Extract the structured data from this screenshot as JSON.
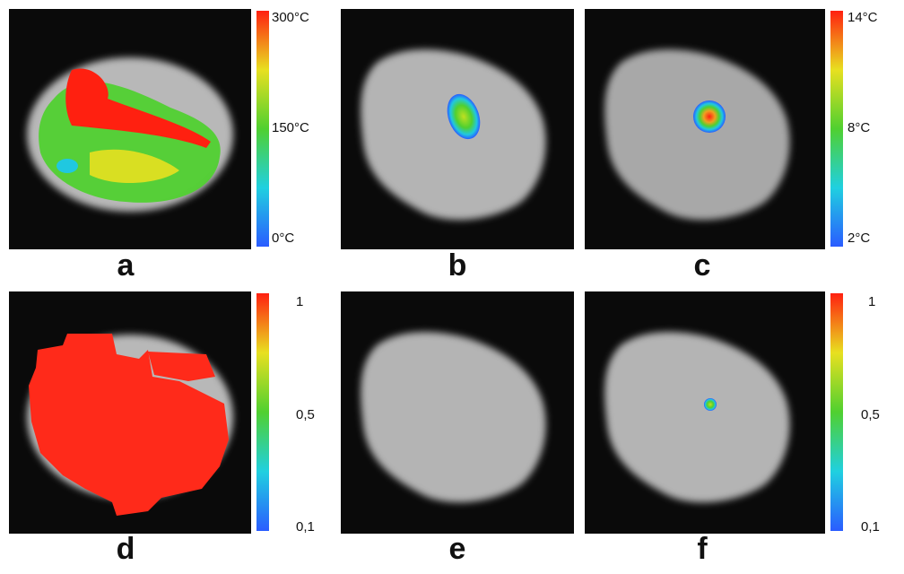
{
  "panels": [
    {
      "label": "a",
      "colorbar": [
        "300°C",
        "150°C",
        "0°C"
      ]
    },
    {
      "label": "b"
    },
    {
      "label": "c",
      "colorbar": [
        "14°C",
        "8°C",
        "2°C"
      ]
    },
    {
      "label": "d",
      "colorbar": [
        "1",
        "0,5",
        "0,1"
      ]
    },
    {
      "label": "e"
    },
    {
      "label": "f",
      "colorbar": [
        "1",
        "0,5",
        "0,1"
      ]
    }
  ]
}
